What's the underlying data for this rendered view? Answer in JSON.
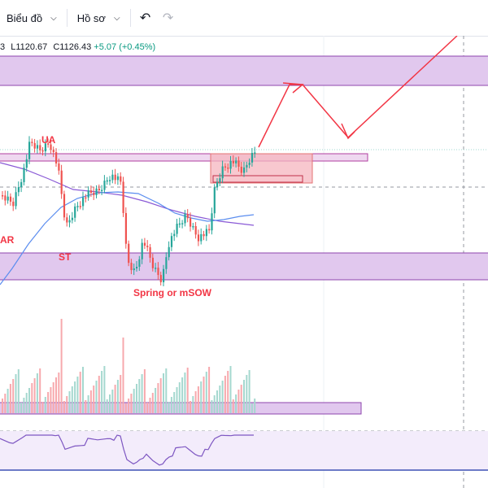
{
  "toolbar": {
    "chart_menu": "Biểu đồ",
    "profile_menu": "Hồ sơ",
    "undo_icon": "undo-icon",
    "redo_icon": "redo-icon"
  },
  "ohlc": {
    "open_partial": "3",
    "low_label": "L",
    "low": "1120.67",
    "close_label": "C",
    "close": "1126.43",
    "change": "+5.07",
    "change_pct": "(+0.45%)"
  },
  "annotations": {
    "ua": "UA",
    "ar": "AR",
    "st": "ST",
    "spring": "Spring or mSOW"
  },
  "colors": {
    "up": "#26a69a",
    "down": "#ef5350",
    "zone_fill": "#e1c8ee",
    "zone_border": "#8e44ad",
    "red_box": "#f6b6bf",
    "arrow": "#f23645",
    "ma_blue": "#5b8def",
    "ma_purple": "#8a5ad6",
    "rsi_line": "#7e57c2",
    "rsi_base": "#3f51b5"
  }
}
